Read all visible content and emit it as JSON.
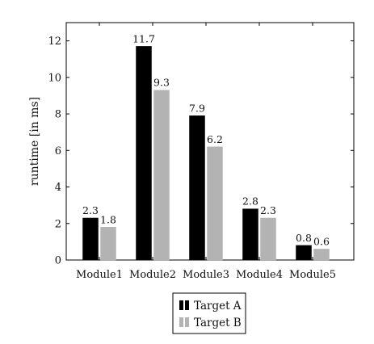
{
  "chart_data": {
    "type": "bar",
    "title": "",
    "xlabel": "",
    "ylabel": "runtime [in ms]",
    "categories": [
      "Module1",
      "Module2",
      "Module3",
      "Module4",
      "Module5"
    ],
    "series": [
      {
        "name": "Target A",
        "values": [
          2.3,
          11.7,
          7.9,
          2.8,
          0.8
        ],
        "value_labels": [
          "2.3",
          "11.7",
          "7.9",
          "2.8",
          "0.8"
        ]
      },
      {
        "name": "Target B",
        "values": [
          1.8,
          9.3,
          6.2,
          2.3,
          0.6
        ],
        "value_labels": [
          "1.8",
          "9.3",
          "6.2",
          "2.3",
          "0.6"
        ]
      }
    ],
    "ylim": [
      0,
      13
    ],
    "yticks": [
      0,
      2,
      4,
      6,
      8,
      10,
      12
    ],
    "ytick_labels": [
      "0",
      "2",
      "4",
      "6",
      "8",
      "10",
      "12"
    ],
    "grid": false,
    "legend_position": "bottom-center",
    "colors": [
      "#000000",
      "#b3b3b3"
    ]
  }
}
